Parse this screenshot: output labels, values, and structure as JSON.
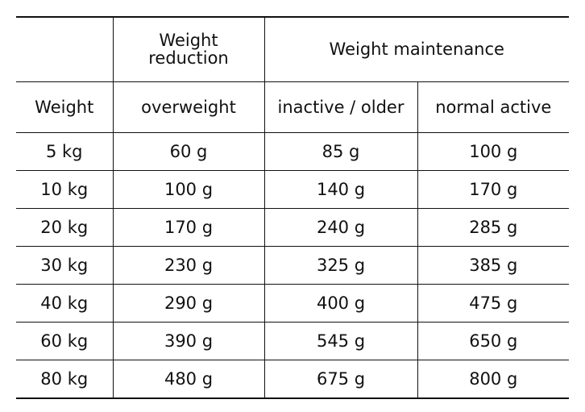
{
  "table": {
    "group_headers": {
      "empty": "",
      "reduction": "Weight reduction",
      "maintenance": "Weight maintenance"
    },
    "sub_headers": [
      "Weight",
      "overweight",
      "inactive / older",
      "normal active"
    ],
    "rows": [
      [
        "5 kg",
        "60 g",
        "85 g",
        "100 g"
      ],
      [
        "10 kg",
        "100 g",
        "140 g",
        "170 g"
      ],
      [
        "20 kg",
        "170 g",
        "240 g",
        "285 g"
      ],
      [
        "30 kg",
        "230 g",
        "325 g",
        "385 g"
      ],
      [
        "40 kg",
        "290 g",
        "400 g",
        "475 g"
      ],
      [
        "60 kg",
        "390 g",
        "545 g",
        "650 g"
      ],
      [
        "80 kg",
        "480 g",
        "675 g",
        "800 g"
      ]
    ]
  }
}
